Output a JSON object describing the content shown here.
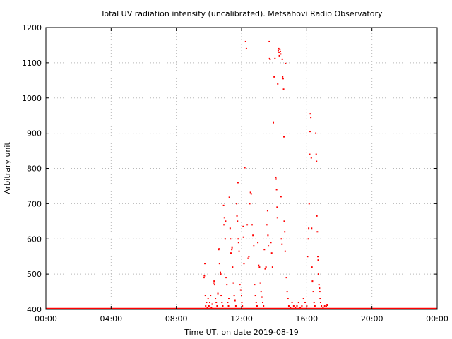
{
  "chart_data": {
    "type": "scatter",
    "title": "Total UV radiation intensity (uncalibrated). Metsähovi Radio Observatory",
    "xlabel": "Time UT, on date 2019-08-19",
    "ylabel": "Arbitrary unit",
    "xlim": [
      0,
      24
    ],
    "ylim": [
      400,
      1200
    ],
    "x_unit": "hours UT",
    "x_ticks": [
      {
        "value": 0,
        "label": "00:00"
      },
      {
        "value": 4,
        "label": "04:00"
      },
      {
        "value": 8,
        "label": "08:00"
      },
      {
        "value": 12,
        "label": "12:00"
      },
      {
        "value": 16,
        "label": "16:00"
      },
      {
        "value": 20,
        "label": "20:00"
      },
      {
        "value": 24,
        "label": "00:00"
      }
    ],
    "y_ticks": [
      {
        "value": 400,
        "label": "400"
      },
      {
        "value": 500,
        "label": "500"
      },
      {
        "value": 600,
        "label": "600"
      },
      {
        "value": 700,
        "label": "700"
      },
      {
        "value": 800,
        "label": "800"
      },
      {
        "value": 900,
        "label": "900"
      },
      {
        "value": 1000,
        "label": "1000"
      },
      {
        "value": 1100,
        "label": "1100"
      },
      {
        "value": 1200,
        "label": "1200"
      }
    ],
    "grid": true,
    "grid_style": "dotted",
    "series_color": "#ff0000",
    "baseline": {
      "y": 400,
      "x_range": [
        0,
        24
      ]
    },
    "series": [
      {
        "points": [
          [
            9.7,
            490
          ],
          [
            9.72,
            495
          ],
          [
            9.75,
            530
          ],
          [
            9.78,
            440
          ],
          [
            9.8,
            410
          ],
          [
            9.85,
            420
          ],
          [
            9.9,
            405
          ],
          [
            9.95,
            430
          ],
          [
            10.0,
            410
          ],
          [
            10.05,
            420
          ],
          [
            10.1,
            440
          ],
          [
            10.15,
            405
          ],
          [
            10.2,
            415
          ],
          [
            10.3,
            475
          ],
          [
            10.32,
            480
          ],
          [
            10.35,
            470
          ],
          [
            10.4,
            430
          ],
          [
            10.45,
            420
          ],
          [
            10.5,
            410
          ],
          [
            10.55,
            445
          ],
          [
            10.6,
            570
          ],
          [
            10.62,
            572
          ],
          [
            10.65,
            530
          ],
          [
            10.7,
            505
          ],
          [
            10.72,
            500
          ],
          [
            10.75,
            440
          ],
          [
            10.8,
            420
          ],
          [
            10.85,
            410
          ],
          [
            10.9,
            695
          ],
          [
            10.92,
            640
          ],
          [
            10.95,
            660
          ],
          [
            11.0,
            600
          ],
          [
            11.02,
            650
          ],
          [
            11.05,
            490
          ],
          [
            11.1,
            470
          ],
          [
            11.15,
            420
          ],
          [
            11.2,
            410
          ],
          [
            11.22,
            430
          ],
          [
            11.25,
            718
          ],
          [
            11.3,
            630
          ],
          [
            11.32,
            600
          ],
          [
            11.35,
            560
          ],
          [
            11.4,
            570
          ],
          [
            11.42,
            575
          ],
          [
            11.45,
            520
          ],
          [
            11.5,
            475
          ],
          [
            11.55,
            440
          ],
          [
            11.6,
            425
          ],
          [
            11.65,
            410
          ],
          [
            11.7,
            700
          ],
          [
            11.72,
            665
          ],
          [
            11.75,
            650
          ],
          [
            11.78,
            760
          ],
          [
            11.8,
            600
          ],
          [
            11.82,
            590
          ],
          [
            11.85,
            565
          ],
          [
            11.9,
            470
          ],
          [
            11.95,
            455
          ],
          [
            12.0,
            440
          ],
          [
            12.02,
            420
          ],
          [
            12.05,
            410
          ],
          [
            12.1,
            635
          ],
          [
            12.12,
            605
          ],
          [
            12.15,
            530
          ],
          [
            12.2,
            802
          ],
          [
            12.25,
            1160
          ],
          [
            12.3,
            1140
          ],
          [
            12.35,
            640
          ],
          [
            12.4,
            545
          ],
          [
            12.45,
            550
          ],
          [
            12.5,
            700
          ],
          [
            12.55,
            732
          ],
          [
            12.6,
            728
          ],
          [
            12.65,
            640
          ],
          [
            12.7,
            610
          ],
          [
            12.75,
            580
          ],
          [
            12.8,
            470
          ],
          [
            12.85,
            440
          ],
          [
            12.9,
            420
          ],
          [
            12.95,
            410
          ],
          [
            13.0,
            590
          ],
          [
            13.05,
            525
          ],
          [
            13.1,
            520
          ],
          [
            13.15,
            475
          ],
          [
            13.2,
            450
          ],
          [
            13.25,
            435
          ],
          [
            13.3,
            420
          ],
          [
            13.35,
            410
          ],
          [
            13.4,
            570
          ],
          [
            13.45,
            515
          ],
          [
            13.5,
            520
          ],
          [
            13.55,
            640
          ],
          [
            13.6,
            680
          ],
          [
            13.62,
            610
          ],
          [
            13.65,
            580
          ],
          [
            13.7,
            1160
          ],
          [
            13.72,
            1112
          ],
          [
            13.75,
            1110
          ],
          [
            13.8,
            590
          ],
          [
            13.85,
            560
          ],
          [
            13.9,
            520
          ],
          [
            13.95,
            930
          ],
          [
            14.0,
            1060
          ],
          [
            14.05,
            1112
          ],
          [
            14.1,
            775
          ],
          [
            14.12,
            770
          ],
          [
            14.15,
            740
          ],
          [
            14.18,
            690
          ],
          [
            14.2,
            660
          ],
          [
            14.22,
            1040
          ],
          [
            14.25,
            1135
          ],
          [
            14.28,
            1140
          ],
          [
            14.3,
            1130
          ],
          [
            14.32,
            1120
          ],
          [
            14.35,
            1138
          ],
          [
            14.38,
            1132
          ],
          [
            14.4,
            1125
          ],
          [
            14.42,
            720
          ],
          [
            14.45,
            600
          ],
          [
            14.48,
            585
          ],
          [
            14.5,
            1110
          ],
          [
            14.52,
            1060
          ],
          [
            14.55,
            1055
          ],
          [
            14.58,
            1025
          ],
          [
            14.6,
            890
          ],
          [
            14.62,
            650
          ],
          [
            14.65,
            620
          ],
          [
            14.68,
            565
          ],
          [
            14.7,
            1098
          ],
          [
            14.75,
            490
          ],
          [
            14.8,
            450
          ],
          [
            14.85,
            430
          ],
          [
            14.9,
            410
          ],
          [
            15.0,
            405
          ],
          [
            15.1,
            420
          ],
          [
            15.2,
            410
          ],
          [
            15.3,
            405
          ],
          [
            15.4,
            410
          ],
          [
            15.5,
            420
          ],
          [
            15.6,
            405
          ],
          [
            15.7,
            410
          ],
          [
            15.8,
            430
          ],
          [
            15.9,
            420
          ],
          [
            16.0,
            410
          ],
          [
            16.05,
            550
          ],
          [
            16.1,
            600
          ],
          [
            16.12,
            630
          ],
          [
            16.15,
            700
          ],
          [
            16.18,
            840
          ],
          [
            16.2,
            905
          ],
          [
            16.22,
            955
          ],
          [
            16.25,
            945
          ],
          [
            16.28,
            830
          ],
          [
            16.3,
            630
          ],
          [
            16.32,
            520
          ],
          [
            16.35,
            480
          ],
          [
            16.4,
            450
          ],
          [
            16.45,
            420
          ],
          [
            16.5,
            410
          ],
          [
            16.55,
            900
          ],
          [
            16.58,
            840
          ],
          [
            16.6,
            820
          ],
          [
            16.62,
            665
          ],
          [
            16.65,
            620
          ],
          [
            16.68,
            550
          ],
          [
            16.7,
            540
          ],
          [
            16.72,
            500
          ],
          [
            16.75,
            470
          ],
          [
            16.78,
            460
          ],
          [
            16.8,
            450
          ],
          [
            16.82,
            430
          ],
          [
            16.85,
            420
          ],
          [
            16.9,
            410
          ],
          [
            17.0,
            405
          ],
          [
            17.1,
            410
          ],
          [
            17.2,
            408
          ],
          [
            17.25,
            412
          ]
        ]
      }
    ]
  }
}
